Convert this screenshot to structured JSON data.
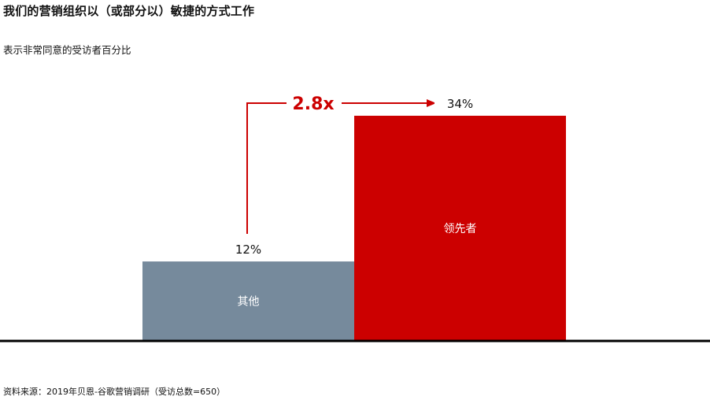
{
  "title": "我们的营销组织以（或部分以）敏捷的方式工作",
  "subtitle": "表示非常同意的受访者百分比",
  "source": "资料来源：2019年贝恩-谷歌营销调研（受访总数=650）",
  "colors": {
    "other": "#768a9c",
    "leader": "#cc0000",
    "accent": "#cc0000",
    "baseline": "#000000",
    "label_dark": "#111111",
    "label_light": "#ffffff"
  },
  "chart_data": {
    "type": "bar",
    "categories": [
      "其他",
      "领先者"
    ],
    "values": [
      12,
      34
    ],
    "value_labels": [
      "12%",
      "34%"
    ],
    "title": "我们的营销组织以（或部分以）敏捷的方式工作",
    "subtitle": "表示非常同意的受访者百分比",
    "annotation": "2.8x",
    "ylim": [
      0,
      34
    ],
    "grid": false,
    "legend": "none"
  }
}
